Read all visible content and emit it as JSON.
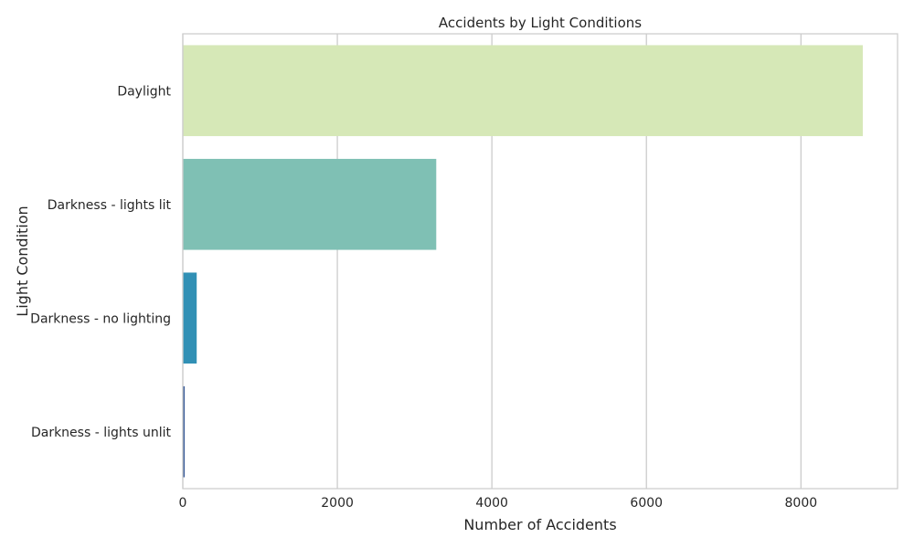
{
  "chart_data": {
    "type": "bar",
    "orientation": "horizontal",
    "title": "Accidents by Light Conditions",
    "xlabel": "Number of Accidents",
    "ylabel": "Light Condition",
    "categories": [
      "Daylight",
      "Darkness - lights lit",
      "Darkness - no lighting",
      "Darkness - lights unlit"
    ],
    "values": [
      8800,
      3280,
      180,
      25
    ],
    "colors": [
      "#d6e8b7",
      "#7fc0b4",
      "#3190b5",
      "#3e5f9b"
    ],
    "xlim": [
      0,
      9250
    ],
    "xticks": [
      0,
      2000,
      4000,
      6000,
      8000
    ],
    "xtick_labels": [
      "0",
      "2000",
      "4000",
      "6000",
      "8000"
    ],
    "grid": "vertical",
    "style": {
      "grid_color": "#cccccc",
      "spine_color": "#cccccc",
      "text_color": "#262626"
    }
  }
}
